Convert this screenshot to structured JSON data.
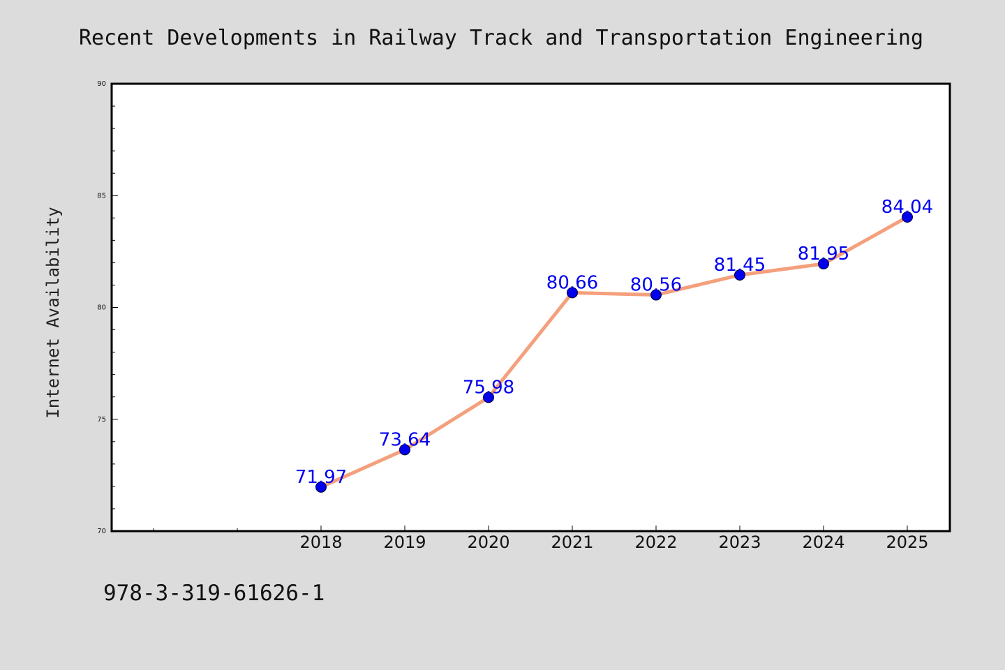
{
  "chart_data": {
    "type": "line",
    "title": "Recent Developments in Railway Track and Transportation Engineering",
    "xlabel": "",
    "ylabel": "Internet Availability",
    "categories": [
      "2018",
      "2019",
      "2020",
      "2021",
      "2022",
      "2023",
      "2024",
      "2025"
    ],
    "series": [
      {
        "values": [
          71.97,
          73.64,
          75.98,
          80.66,
          80.56,
          81.45,
          81.95,
          84.04
        ],
        "line_color": "#f4a07c",
        "marker_color": "#0000ee"
      }
    ],
    "data_labels": [
      "71.97",
      "73.64",
      "75.98",
      "80.66",
      "80.56",
      "81.45",
      "81.95",
      "84.04"
    ],
    "ylim": [
      70,
      90
    ],
    "y_ticks": [
      "70",
      "75",
      "80",
      "85",
      "90"
    ],
    "grid": false,
    "legend": "none",
    "colors": {
      "background": "#dcdcdc",
      "plot_background": "#ffffff",
      "data_label": "#0000ee"
    }
  },
  "footer": {
    "code": "978-3-319-61626-1"
  }
}
